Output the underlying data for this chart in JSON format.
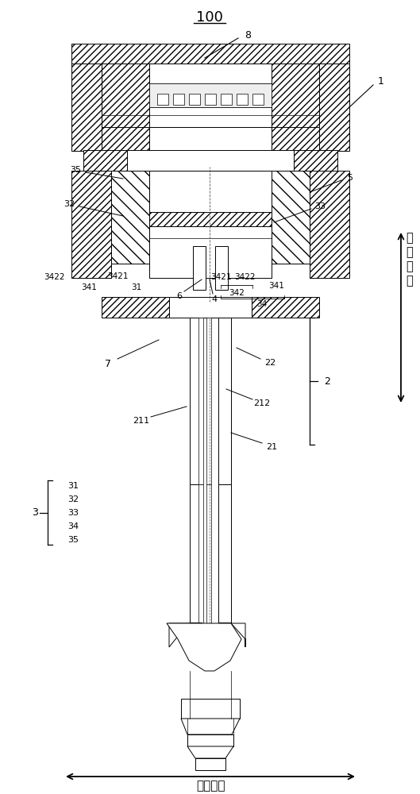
{
  "title": "100",
  "bg_color": "#ffffff",
  "line_color": "#000000",
  "labels": {
    "title": "100",
    "label_1": "1",
    "label_2": "2",
    "label_3": "3",
    "label_4": "4",
    "label_5": "5",
    "label_6": "6",
    "label_7": "7",
    "label_8": "8",
    "label_21": "21",
    "label_22": "22",
    "label_31": "31",
    "label_32": "32",
    "label_33": "33",
    "label_34": "34",
    "label_35": "35",
    "label_211": "211",
    "label_212": "212",
    "label_341": "341",
    "label_342": "342",
    "label_3421": "3421",
    "label_3422": "3422",
    "dir1": "第一方向",
    "dir2": "第二方向"
  },
  "figsize": [
    5.29,
    10.0
  ],
  "dpi": 100
}
